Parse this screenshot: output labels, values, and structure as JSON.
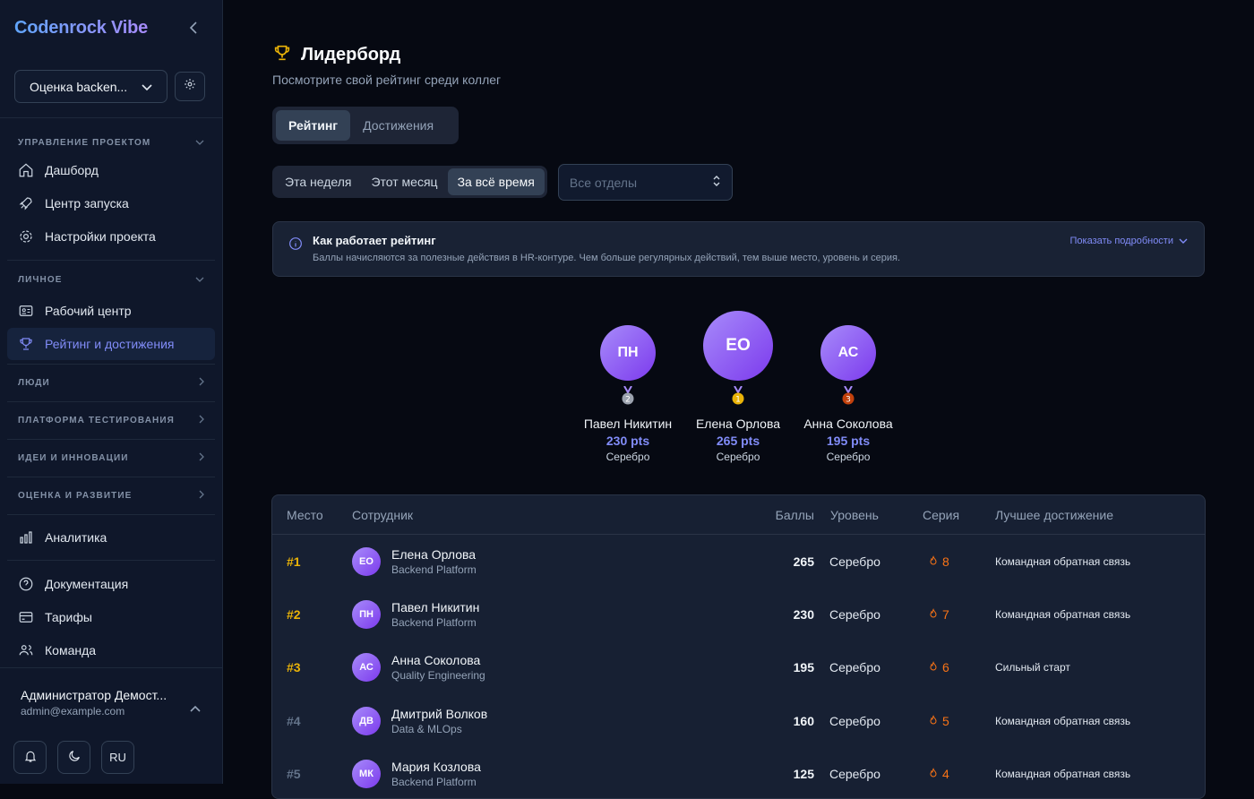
{
  "sidebar": {
    "brand": "Codenrock Vibe",
    "project": "Оценка backen...",
    "sections": [
      {
        "title": "УПРАВЛЕНИЕ ПРОЕКТОМ",
        "items": [
          "Дашборд",
          "Центр запуска",
          "Настройки проекта"
        ]
      },
      {
        "title": "ЛИЧНОЕ",
        "items": [
          "Рабочий центр",
          "Рейтинг и достижения"
        ]
      }
    ],
    "collapsed": [
      "ЛЮДИ",
      "ПЛАТФОРМА ТЕСТИРОВАНИЯ",
      "ИДЕИ И ИННОВАЦИИ",
      "ОЦЕНКА И РАЗВИТИЕ"
    ],
    "analytics": "Аналитика",
    "bottom_items": [
      "Документация",
      "Тарифы",
      "Команда"
    ],
    "user": {
      "name": "Администратор Демост...",
      "email": "admin@example.com",
      "lang": "RU"
    }
  },
  "main": {
    "title": "Лидерборд",
    "subtitle": "Посмотрите свой рейтинг среди коллег",
    "tabs": [
      "Рейтинг",
      "Достижения"
    ],
    "periods": [
      "Эта неделя",
      "Этот месяц",
      "За всё время"
    ],
    "dept_placeholder": "Все отделы",
    "info": {
      "title": "Как работает рейтинг",
      "text": "Баллы начисляются за полезные действия в HR-контуре. Чем больше регулярных действий, тем выше место, уровень и серия.",
      "link": "Показать подробности"
    },
    "podium": [
      {
        "initials": "ПН",
        "medal": "2",
        "name": "Павел Никитин",
        "pts": "230 pts",
        "level": "Серебро"
      },
      {
        "initials": "ЕО",
        "medal": "1",
        "name": "Елена Орлова",
        "pts": "265 pts",
        "level": "Серебро"
      },
      {
        "initials": "АС",
        "medal": "3",
        "name": "Анна Соколова",
        "pts": "195 pts",
        "level": "Серебро"
      }
    ],
    "table": {
      "headers": [
        "Место",
        "Сотрудник",
        "Баллы",
        "Уровень",
        "Серия",
        "Лучшее достижение"
      ],
      "rows": [
        {
          "place": "#1",
          "initials": "ЕО",
          "name": "Елена Орлова",
          "dept": "Backend Platform",
          "pts": "265",
          "level": "Серебро",
          "streak": "8",
          "ach": "Командная обратная связь"
        },
        {
          "place": "#2",
          "initials": "ПН",
          "name": "Павел Никитин",
          "dept": "Backend Platform",
          "pts": "230",
          "level": "Серебро",
          "streak": "7",
          "ach": "Командная обратная связь"
        },
        {
          "place": "#3",
          "initials": "АС",
          "name": "Анна Соколова",
          "dept": "Quality Engineering",
          "pts": "195",
          "level": "Серебро",
          "streak": "6",
          "ach": "Сильный старт"
        },
        {
          "place": "#4",
          "initials": "ДВ",
          "name": "Дмитрий Волков",
          "dept": "Data & MLOps",
          "pts": "160",
          "level": "Серебро",
          "streak": "5",
          "ach": "Командная обратная связь"
        },
        {
          "place": "#5",
          "initials": "МК",
          "name": "Мария Козлова",
          "dept": "Backend Platform",
          "pts": "125",
          "level": "Серебро",
          "streak": "4",
          "ach": "Командная обратная связь"
        }
      ]
    }
  }
}
